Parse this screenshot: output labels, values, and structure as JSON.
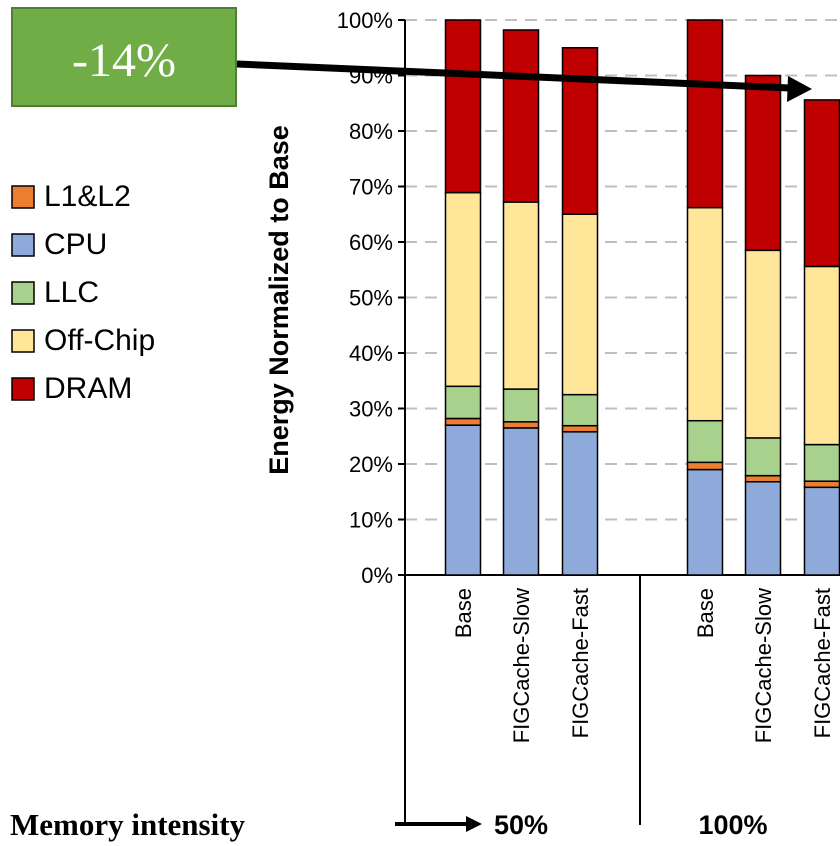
{
  "chart_data": {
    "type": "bar",
    "stacked": true,
    "ylabel": "Energy Normalized to Base",
    "ylim": [
      0,
      100
    ],
    "yticks": [
      "0%",
      "10%",
      "20%",
      "30%",
      "40%",
      "50%",
      "60%",
      "70%",
      "80%",
      "90%",
      "100%"
    ],
    "grid": true,
    "legend_position": "left",
    "groups": [
      {
        "label": "50%",
        "categories": [
          "Base",
          "FIGCache-Slow",
          "FIGCache-Fast"
        ]
      },
      {
        "label": "100%",
        "categories": [
          "Base",
          "FIGCache-Slow",
          "FIGCache-Fast"
        ]
      }
    ],
    "categories": [
      "Base",
      "FIGCache-Slow",
      "FIGCache-Fast",
      "Base",
      "FIGCache-Slow",
      "FIGCache-Fast"
    ],
    "series": [
      {
        "name": "CPU",
        "color": "#8eaadb",
        "values": [
          27.0,
          26.5,
          25.8,
          19.0,
          16.8,
          15.8
        ]
      },
      {
        "name": "L1&L2",
        "color": "#ed7d31",
        "values": [
          1.2,
          1.1,
          1.1,
          1.3,
          1.1,
          1.1
        ]
      },
      {
        "name": "LLC",
        "color": "#a9d18e",
        "values": [
          5.8,
          5.9,
          5.6,
          7.5,
          6.8,
          6.6
        ]
      },
      {
        "name": "Off-Chip",
        "color": "#ffe699",
        "values": [
          34.9,
          33.7,
          32.5,
          38.4,
          33.8,
          32.1
        ]
      },
      {
        "name": "DRAM",
        "color": "#c00000",
        "values": [
          31.1,
          31.0,
          30.0,
          33.8,
          31.5,
          30.0
        ]
      }
    ],
    "legend_order": [
      "L1&L2",
      "CPU",
      "LLC",
      "Off-Chip",
      "DRAM"
    ],
    "annotation": {
      "text": "-14%",
      "color": "#70ad47"
    },
    "xlabel": "Memory intensity"
  }
}
